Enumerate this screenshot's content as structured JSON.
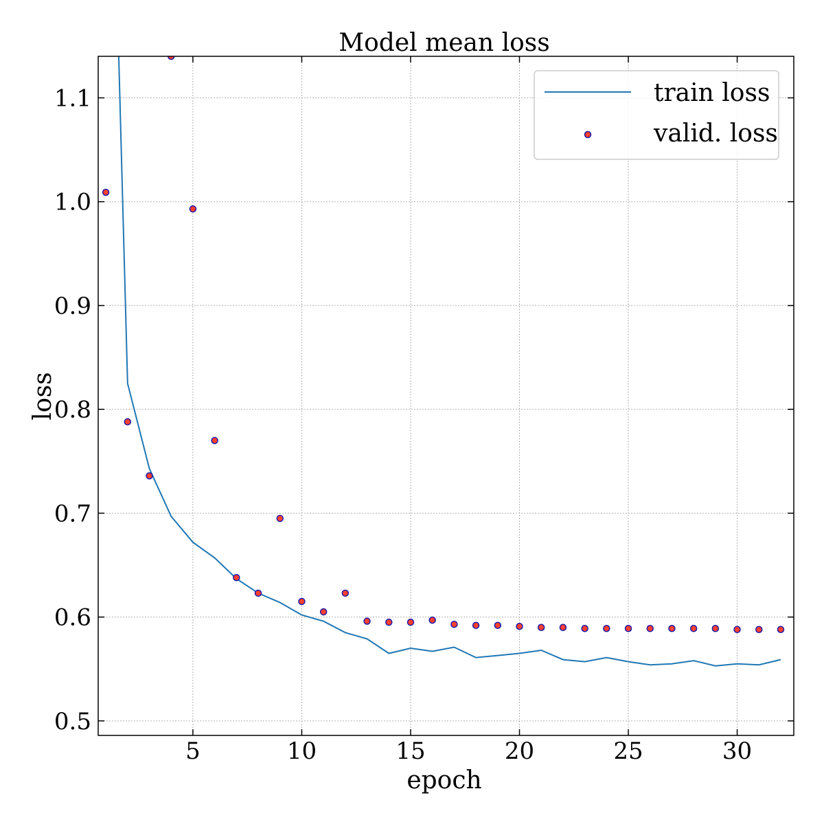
{
  "chart_data": {
    "type": "line",
    "title": "Model mean loss",
    "xlabel": "epoch",
    "ylabel": "loss",
    "xlim": [
      0.65,
      32.6
    ],
    "ylim": [
      0.486,
      1.14
    ],
    "xticks": [
      5,
      10,
      15,
      20,
      25,
      30
    ],
    "yticks": [
      0.5,
      0.6,
      0.7,
      0.8,
      0.9,
      1.0,
      1.1
    ],
    "xtick_labels": [
      "5",
      "10",
      "15",
      "20",
      "25",
      "30"
    ],
    "ytick_labels": [
      "0.5",
      "0.6",
      "0.7",
      "0.8",
      "0.9",
      "1.0",
      "1.1"
    ],
    "grid": true,
    "legend_position": "top-right",
    "series": [
      {
        "name": "train loss",
        "kind": "line",
        "color": "#1f77b4",
        "x": [
          1,
          2,
          3,
          4,
          5,
          6,
          7,
          8,
          9,
          10,
          11,
          12,
          13,
          14,
          15,
          16,
          17,
          18,
          19,
          20,
          21,
          22,
          23,
          24,
          25,
          26,
          27,
          28,
          29,
          30,
          31,
          32
        ],
        "y": [
          1.6,
          0.825,
          0.743,
          0.697,
          0.672,
          0.657,
          0.637,
          0.623,
          0.614,
          0.602,
          0.596,
          0.585,
          0.579,
          0.565,
          0.57,
          0.567,
          0.571,
          0.561,
          0.563,
          0.565,
          0.568,
          0.559,
          0.557,
          0.561,
          0.557,
          0.554,
          0.555,
          0.558,
          0.553,
          0.555,
          0.554,
          0.559
        ]
      },
      {
        "name": "valid. loss",
        "kind": "scatter",
        "color": "#ff4030",
        "edge_color": "#1a1aa8",
        "x": [
          1,
          2,
          3,
          4,
          5,
          6,
          7,
          8,
          9,
          10,
          11,
          12,
          13,
          14,
          15,
          16,
          17,
          18,
          19,
          20,
          21,
          22,
          23,
          24,
          25,
          26,
          27,
          28,
          29,
          30,
          31,
          32
        ],
        "y": [
          1.009,
          0.788,
          0.736,
          1.14,
          0.993,
          0.77,
          0.638,
          0.623,
          0.695,
          0.615,
          0.605,
          0.623,
          0.596,
          0.595,
          0.595,
          0.597,
          0.593,
          0.592,
          0.592,
          0.591,
          0.59,
          0.59,
          0.589,
          0.589,
          0.589,
          0.589,
          0.589,
          0.589,
          0.589,
          0.588,
          0.588,
          0.588
        ]
      }
    ]
  }
}
